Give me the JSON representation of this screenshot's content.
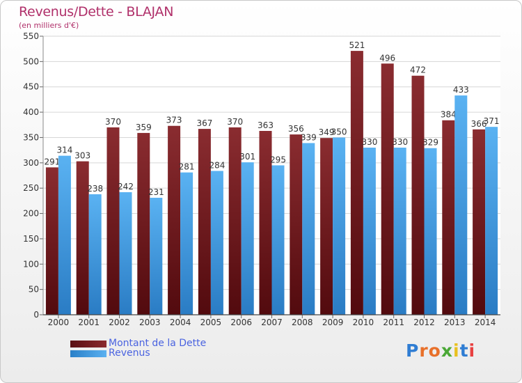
{
  "header": {
    "title": "Revenus/Dette - BLAJAN",
    "subtitle": "(en milliers d'€)"
  },
  "legend": {
    "dette_label": "Montant de la Dette",
    "revenus_label": "Revenus"
  },
  "logo": {
    "text": "Proxiti",
    "letter_colors": [
      "#2f7dd3",
      "#e8702a",
      "#e8702a",
      "#4aa836",
      "#e8c020",
      "#2f7dd3",
      "#e84040"
    ]
  },
  "colors": {
    "dette": "#7a1f24",
    "revenus": "#3a98e0",
    "title": "#b0306a",
    "legend_text": "#4a63e0"
  },
  "chart_data": {
    "type": "bar",
    "title": "Revenus/Dette - BLAJAN",
    "subtitle": "(en milliers d'€)",
    "categories": [
      "2000",
      "2001",
      "2002",
      "2003",
      "2004",
      "2005",
      "2006",
      "2007",
      "2008",
      "2009",
      "2010",
      "2011",
      "2012",
      "2013",
      "2014"
    ],
    "series": [
      {
        "name": "Montant de la Dette",
        "values": [
          291,
          303,
          370,
          359,
          373,
          367,
          370,
          363,
          356,
          349,
          521,
          496,
          472,
          384,
          366
        ],
        "labels": [
          "291",
          "303",
          "370",
          "359",
          "373",
          "367",
          "370",
          "363",
          "356",
          "349",
          "521",
          "496",
          "472",
          "384",
          "366"
        ]
      },
      {
        "name": "Revenus",
        "values": [
          314,
          238,
          242,
          231,
          281,
          284,
          301,
          295,
          339,
          350,
          330,
          330,
          329,
          433,
          371
        ],
        "labels": [
          "314",
          "238",
          "242",
          "231",
          "281",
          "284",
          "301",
          "295",
          "339",
          "350",
          "330",
          "330",
          "329",
          "433",
          "371"
        ]
      }
    ],
    "ylim": [
      0,
      550
    ],
    "yticks": [
      0,
      50,
      100,
      150,
      200,
      250,
      300,
      350,
      400,
      450,
      500,
      550
    ],
    "grid": true,
    "legend_position": "bottom-left"
  }
}
